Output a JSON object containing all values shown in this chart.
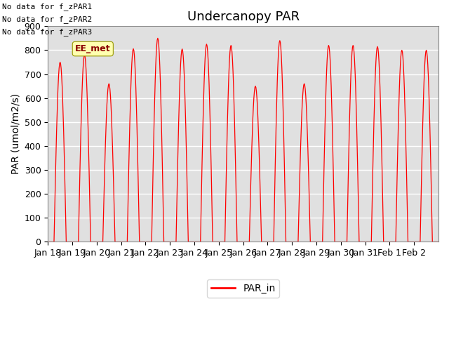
{
  "title": "Undercanopy PAR",
  "ylabel": "PAR (umol/m2/s)",
  "ylim": [
    0,
    900
  ],
  "yticks": [
    0,
    100,
    200,
    300,
    400,
    500,
    600,
    700,
    800,
    900
  ],
  "no_data_texts": [
    "No data for f_zPAR1",
    "No data for f_zPAR2",
    "No data for f_zPAR3"
  ],
  "ee_met_label": "EE_met",
  "legend_label": "PAR_in",
  "line_color": "#ff0000",
  "plot_bg_color": "#e0e0e0",
  "x_tick_labels": [
    "Jan 18",
    "Jan 19",
    "Jan 20",
    "Jan 21",
    "Jan 22",
    "Jan 23",
    "Jan 24",
    "Jan 25",
    "Jan 26",
    "Jan 27",
    "Jan 28",
    "Jan 29",
    "Jan 30",
    "Jan 31",
    "Feb 1",
    "Feb 2"
  ],
  "num_days": 16,
  "day_peaks": [
    750,
    780,
    660,
    806,
    850,
    805,
    825,
    820,
    650,
    840,
    660,
    820,
    820,
    815,
    800,
    800
  ],
  "title_fontsize": 13,
  "label_fontsize": 10,
  "tick_fontsize": 9
}
